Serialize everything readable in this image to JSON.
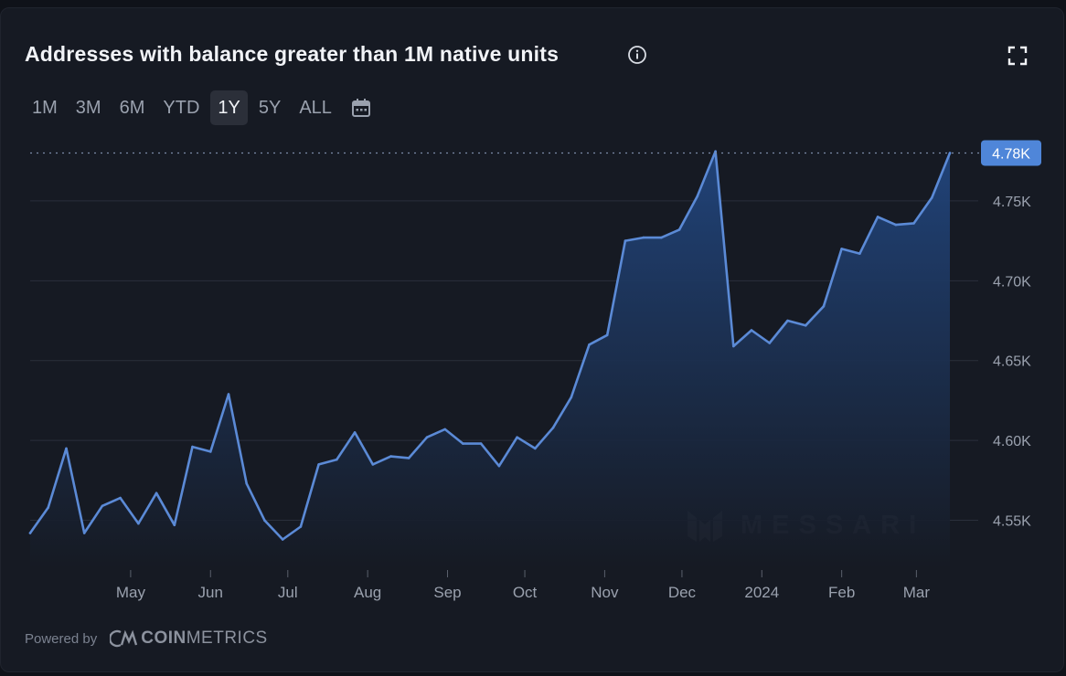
{
  "header": {
    "title": "Addresses with balance greater than 1M native units"
  },
  "range_buttons": [
    {
      "label": "1M",
      "active": false
    },
    {
      "label": "3M",
      "active": false
    },
    {
      "label": "6M",
      "active": false
    },
    {
      "label": "YTD",
      "active": false
    },
    {
      "label": "1Y",
      "active": true
    },
    {
      "label": "5Y",
      "active": false
    },
    {
      "label": "ALL",
      "active": false
    }
  ],
  "icons": {
    "info": "info-icon",
    "expand": "expand-icon",
    "calendar": "calendar-icon"
  },
  "footer": {
    "powered_by": "Powered by",
    "brand_bold": "COIN",
    "brand_light": "METRICS"
  },
  "watermark": {
    "text": "MESSARI"
  },
  "colors": {
    "line": "#5b8ad6",
    "area_top": "#1f3d6e",
    "badge": "#4f86d9",
    "grid": "#2a2f3b",
    "tick_text": "#9aa1ae"
  },
  "chart_data": {
    "type": "area",
    "title": "Addresses with balance greater than 1M native units",
    "xlabel": "",
    "ylabel": "",
    "ylim": [
      4.52,
      4.79
    ],
    "y_ticks": [
      {
        "value": 4.55,
        "label": "4.55K"
      },
      {
        "value": 4.6,
        "label": "4.60K"
      },
      {
        "value": 4.65,
        "label": "4.65K"
      },
      {
        "value": 4.7,
        "label": "4.70K"
      },
      {
        "value": 4.75,
        "label": "4.75K"
      }
    ],
    "x_range": [
      "2023-03-23",
      "2024-03-25"
    ],
    "x_ticks": [
      {
        "date": "2023-05-01",
        "label": "May"
      },
      {
        "date": "2023-06-01",
        "label": "Jun"
      },
      {
        "date": "2023-07-01",
        "label": "Jul"
      },
      {
        "date": "2023-08-01",
        "label": "Aug"
      },
      {
        "date": "2023-09-01",
        "label": "Sep"
      },
      {
        "date": "2023-10-01",
        "label": "Oct"
      },
      {
        "date": "2023-11-01",
        "label": "Nov"
      },
      {
        "date": "2023-12-01",
        "label": "Dec"
      },
      {
        "date": "2024-01-01",
        "label": "2024"
      },
      {
        "date": "2024-02-01",
        "label": "Feb"
      },
      {
        "date": "2024-03-01",
        "label": "Mar"
      }
    ],
    "current_value": {
      "value": 4.78,
      "label": "4.78K"
    },
    "grid": true,
    "legend": "none",
    "series": [
      {
        "points": [
          [
            "2023-03-23",
            4.542
          ],
          [
            "2023-03-30",
            4.558
          ],
          [
            "2023-04-06",
            4.595
          ],
          [
            "2023-04-13",
            4.542
          ],
          [
            "2023-04-20",
            4.559
          ],
          [
            "2023-04-27",
            4.564
          ],
          [
            "2023-05-04",
            4.548
          ],
          [
            "2023-05-11",
            4.567
          ],
          [
            "2023-05-18",
            4.547
          ],
          [
            "2023-05-25",
            4.596
          ],
          [
            "2023-06-01",
            4.593
          ],
          [
            "2023-06-08",
            4.629
          ],
          [
            "2023-06-15",
            4.573
          ],
          [
            "2023-06-22",
            4.55
          ],
          [
            "2023-06-29",
            4.538
          ],
          [
            "2023-07-06",
            4.546
          ],
          [
            "2023-07-13",
            4.585
          ],
          [
            "2023-07-20",
            4.588
          ],
          [
            "2023-07-27",
            4.605
          ],
          [
            "2023-08-03",
            4.585
          ],
          [
            "2023-08-10",
            4.59
          ],
          [
            "2023-08-17",
            4.589
          ],
          [
            "2023-08-24",
            4.602
          ],
          [
            "2023-08-31",
            4.607
          ],
          [
            "2023-09-07",
            4.598
          ],
          [
            "2023-09-14",
            4.598
          ],
          [
            "2023-09-21",
            4.584
          ],
          [
            "2023-09-28",
            4.602
          ],
          [
            "2023-10-05",
            4.595
          ],
          [
            "2023-10-12",
            4.608
          ],
          [
            "2023-10-19",
            4.627
          ],
          [
            "2023-10-26",
            4.66
          ],
          [
            "2023-11-02",
            4.666
          ],
          [
            "2023-11-09",
            4.725
          ],
          [
            "2023-11-16",
            4.727
          ],
          [
            "2023-11-23",
            4.727
          ],
          [
            "2023-11-30",
            4.732
          ],
          [
            "2023-12-07",
            4.753
          ],
          [
            "2023-12-14",
            4.781
          ],
          [
            "2023-12-21",
            4.659
          ],
          [
            "2023-12-28",
            4.669
          ],
          [
            "2024-01-04",
            4.661
          ],
          [
            "2024-01-11",
            4.675
          ],
          [
            "2024-01-18",
            4.672
          ],
          [
            "2024-01-25",
            4.684
          ],
          [
            "2024-02-01",
            4.72
          ],
          [
            "2024-02-08",
            4.717
          ],
          [
            "2024-02-15",
            4.74
          ],
          [
            "2024-02-22",
            4.735
          ],
          [
            "2024-02-29",
            4.736
          ],
          [
            "2024-03-07",
            4.752
          ],
          [
            "2024-03-14",
            4.78
          ]
        ]
      }
    ]
  }
}
